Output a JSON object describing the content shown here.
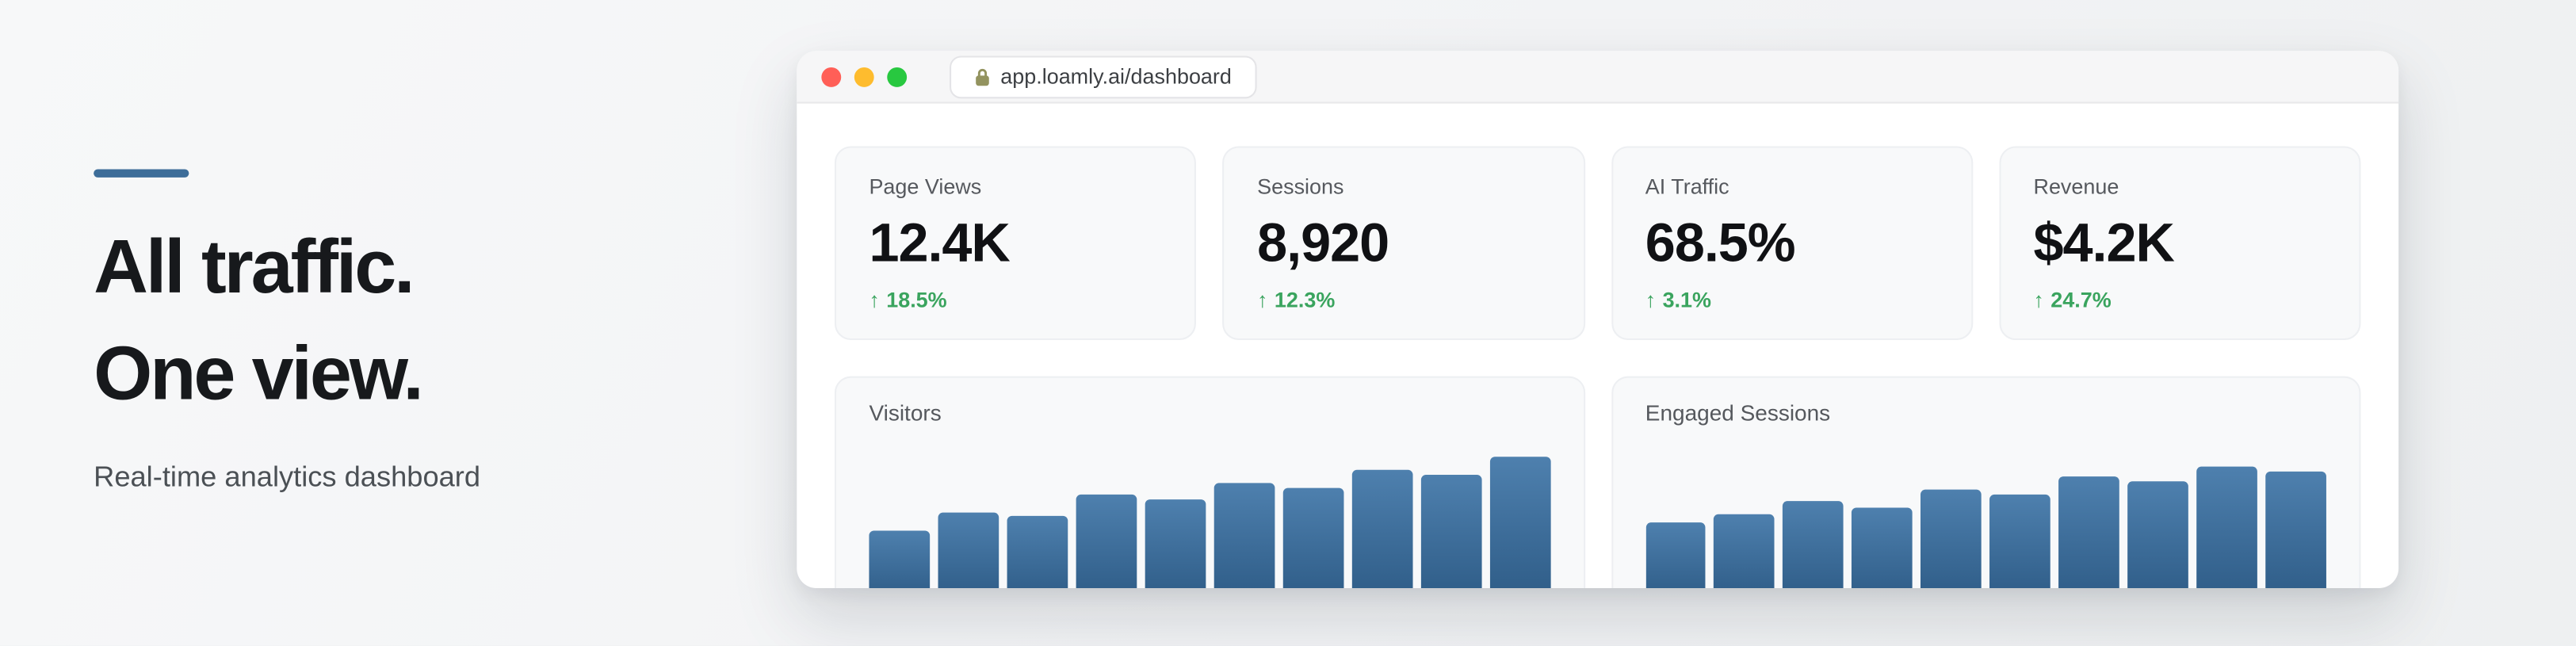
{
  "colors": {
    "accent": "#3d6d99",
    "delta_green": "#3aa45e",
    "bar_gradient_top": "#4e80ae",
    "bar_gradient_bottom": "#2f5d88",
    "traffic_lights": [
      "#ff5f57",
      "#febc2e",
      "#28c840"
    ]
  },
  "hero": {
    "title_line1": "All traffic.",
    "title_line2": "One view.",
    "subtitle": "Real-time analytics dashboard"
  },
  "browser": {
    "url": "app.loamly.ai/dashboard"
  },
  "stats": [
    {
      "label": "Page Views",
      "value": "12.4K",
      "arrow": "↑",
      "delta": "18.5%"
    },
    {
      "label": "Sessions",
      "value": "8,920",
      "arrow": "↑",
      "delta": "12.3%"
    },
    {
      "label": "AI Traffic",
      "value": "68.5%",
      "arrow": "↑",
      "delta": "3.1%"
    },
    {
      "label": "Revenue",
      "value": "$4.2K",
      "arrow": "↑",
      "delta": "24.7%"
    }
  ],
  "chart_data": [
    {
      "type": "bar",
      "title": "Visitors",
      "values": [
        40,
        51,
        49,
        62,
        59,
        69,
        66,
        77,
        74,
        85
      ],
      "xlabel": "",
      "ylabel": "",
      "legend": false,
      "grid": false
    },
    {
      "type": "bar",
      "title": "Engaged Sessions",
      "values": [
        45,
        50,
        58,
        54,
        65,
        62,
        73,
        70,
        79,
        76
      ],
      "xlabel": "",
      "ylabel": "",
      "legend": false,
      "grid": false
    }
  ]
}
